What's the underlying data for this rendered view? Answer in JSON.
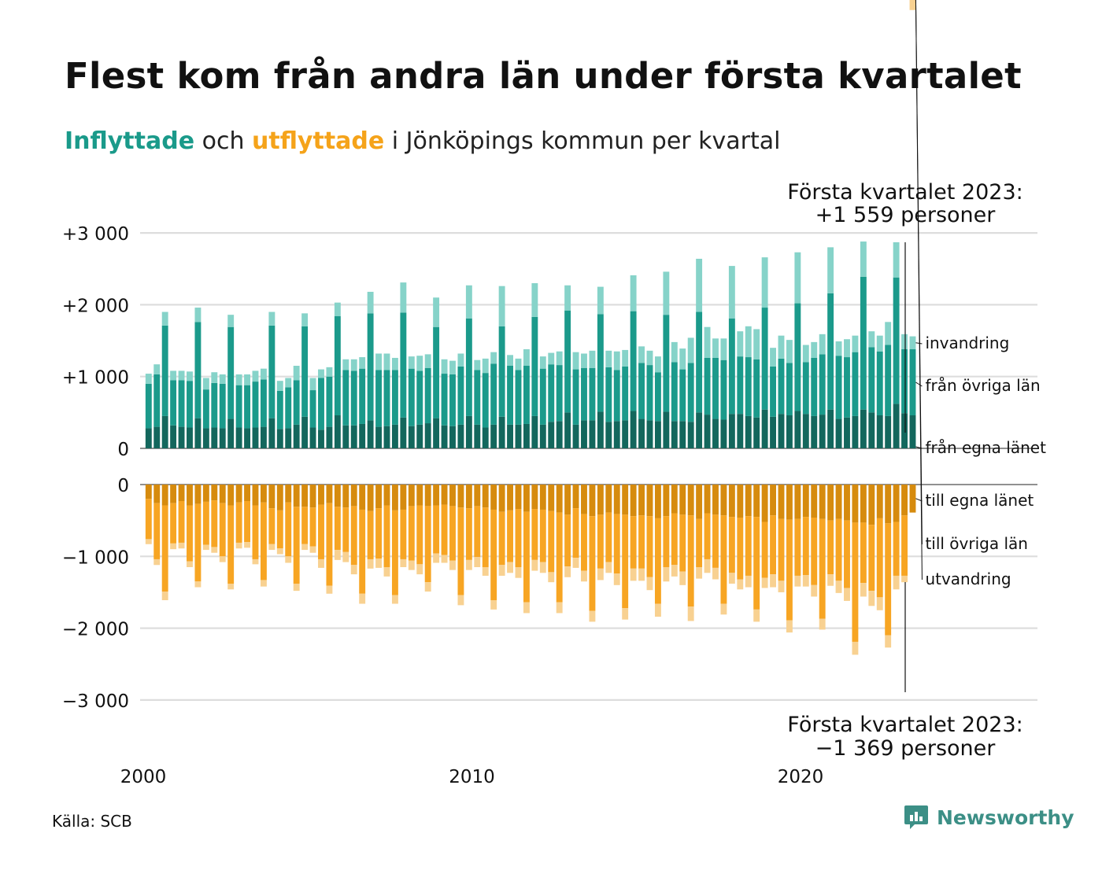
{
  "header": {
    "title": "Flest kom från andra län under första kvartalet",
    "subtitle_in": "Inflyttade",
    "subtitle_mid": " och ",
    "subtitle_out": "utflyttade",
    "subtitle_rest": " i Jönköpings kommun per kvartal"
  },
  "annotations": {
    "top_line1": "Första kvartalet 2023:",
    "top_line2": "+1 559 personer",
    "bottom_line1": "Första kvartalet 2023:",
    "bottom_line2": "−1 369 personer"
  },
  "footer": {
    "source": "Källa: SCB",
    "logo": "Newsworthy"
  },
  "colors": {
    "in_own": "#13675d",
    "in_other": "#1b9a8b",
    "in_immigration": "#86d3c9",
    "out_own": "#d68b0e",
    "out_other": "#f7a523",
    "out_emigration": "#f8d191",
    "grid": "#dddddd"
  },
  "chart_data": {
    "type": "bar",
    "stacked": true,
    "x_start": "2000 Q1",
    "frequency": "quarterly",
    "x_ticks": [
      "2000",
      "2010",
      "2020"
    ],
    "in_axis": {
      "ylim": [
        0,
        3000
      ],
      "ticks": [
        "0",
        "+1 000",
        "+2 000",
        "+3 000"
      ]
    },
    "out_axis": {
      "ylim": [
        -3000,
        0
      ],
      "ticks": [
        "0",
        "−1 000",
        "−2 000",
        "−3 000"
      ]
    },
    "grid": true,
    "inflow_series": [
      {
        "name": "från egna länet",
        "color_key": "in_own",
        "values": [
          280,
          300,
          450,
          320,
          300,
          290,
          420,
          280,
          290,
          280,
          410,
          290,
          280,
          290,
          300,
          420,
          270,
          280,
          330,
          440,
          290,
          260,
          300,
          460,
          320,
          320,
          340,
          390,
          300,
          310,
          330,
          430,
          310,
          330,
          350,
          420,
          320,
          310,
          330,
          450,
          330,
          290,
          330,
          440,
          330,
          330,
          340,
          450,
          330,
          370,
          380,
          500,
          330,
          390,
          390,
          510,
          370,
          380,
          390,
          520,
          410,
          390,
          380,
          510,
          380,
          380,
          370,
          500,
          470,
          410,
          400,
          480,
          480,
          450,
          430,
          540,
          440,
          480,
          460,
          520,
          480,
          450,
          470,
          540,
          410,
          430,
          450,
          540,
          500,
          460,
          450,
          620,
          490,
          460
        ]
      },
      {
        "name": "från övriga län",
        "color_key": "in_other",
        "values": [
          620,
          730,
          1260,
          630,
          650,
          650,
          1340,
          540,
          620,
          620,
          1280,
          590,
          600,
          640,
          660,
          1290,
          530,
          570,
          620,
          1260,
          520,
          720,
          700,
          1380,
          770,
          760,
          770,
          1490,
          790,
          780,
          760,
          1460,
          800,
          750,
          770,
          1270,
          720,
          720,
          810,
          1360,
          760,
          760,
          850,
          1260,
          820,
          760,
          810,
          1380,
          780,
          800,
          780,
          1420,
          770,
          730,
          730,
          1360,
          760,
          710,
          750,
          1390,
          780,
          770,
          680,
          1350,
          820,
          720,
          820,
          1400,
          790,
          850,
          830,
          1330,
          800,
          820,
          810,
          1420,
          700,
          770,
          730,
          1500,
          720,
          810,
          840,
          1620,
          880,
          840,
          890,
          1850,
          910,
          890,
          990,
          1760,
          890,
          920
        ]
      },
      {
        "name": "invandring",
        "color_key": "in_immigration",
        "values": [
          140,
          140,
          190,
          130,
          130,
          130,
          200,
          160,
          150,
          130,
          170,
          150,
          150,
          150,
          150,
          190,
          140,
          130,
          200,
          180,
          170,
          120,
          130,
          190,
          150,
          160,
          160,
          300,
          230,
          230,
          170,
          420,
          170,
          210,
          190,
          410,
          200,
          190,
          180,
          460,
          140,
          200,
          160,
          560,
          150,
          160,
          230,
          470,
          170,
          160,
          190,
          350,
          240,
          200,
          240,
          380,
          230,
          260,
          230,
          500,
          230,
          200,
          220,
          600,
          280,
          290,
          350,
          740,
          430,
          270,
          300,
          730,
          350,
          430,
          420,
          700,
          260,
          320,
          320,
          710,
          240,
          220,
          280,
          640,
          200,
          250,
          230,
          490,
          220,
          220,
          320,
          490,
          210,
          180
        ]
      }
    ],
    "outflow_series": [
      {
        "name": "till egna länet",
        "color_key": "out_own",
        "values": [
          -200,
          -260,
          -290,
          -260,
          -230,
          -290,
          -270,
          -240,
          -220,
          -260,
          -290,
          -250,
          -230,
          -290,
          -250,
          -330,
          -360,
          -250,
          -310,
          -310,
          -320,
          -280,
          -260,
          -310,
          -320,
          -300,
          -350,
          -370,
          -330,
          -290,
          -360,
          -350,
          -300,
          -290,
          -300,
          -290,
          -280,
          -300,
          -320,
          -330,
          -300,
          -320,
          -350,
          -380,
          -360,
          -340,
          -380,
          -340,
          -350,
          -370,
          -390,
          -420,
          -330,
          -410,
          -440,
          -420,
          -390,
          -410,
          -420,
          -440,
          -430,
          -440,
          -470,
          -440,
          -400,
          -420,
          -430,
          -480,
          -400,
          -420,
          -430,
          -450,
          -460,
          -440,
          -450,
          -520,
          -430,
          -480,
          -490,
          -480,
          -450,
          -460,
          -480,
          -500,
          -480,
          -500,
          -530,
          -530,
          -560,
          -470,
          -540,
          -520,
          -430,
          -390
        ]
      },
      {
        "name": "till övriga län",
        "color_key": "out_other",
        "values": [
          -560,
          -780,
          -1200,
          -560,
          -580,
          -780,
          -1080,
          -600,
          -650,
          -740,
          -1090,
          -560,
          -570,
          -750,
          -1080,
          -500,
          -530,
          -750,
          -1070,
          -520,
          -540,
          -760,
          -1150,
          -600,
          -620,
          -820,
          -1170,
          -670,
          -700,
          -860,
          -1180,
          -690,
          -760,
          -820,
          -1060,
          -670,
          -700,
          -760,
          -1220,
          -720,
          -710,
          -830,
          -1260,
          -740,
          -720,
          -810,
          -1260,
          -710,
          -730,
          -850,
          -1250,
          -720,
          -690,
          -790,
          -1320,
          -750,
          -690,
          -830,
          -1300,
          -730,
          -740,
          -850,
          -1190,
          -710,
          -720,
          -790,
          -1270,
          -670,
          -640,
          -740,
          -1230,
          -780,
          -860,
          -830,
          -1290,
          -780,
          -820,
          -860,
          -1400,
          -790,
          -810,
          -940,
          -1390,
          -750,
          -860,
          -940,
          -1660,
          -840,
          -920,
          -1100,
          -1560,
          -750,
          -840
        ]
      },
      {
        "name": "utvandring",
        "color_key": "out_emigration",
        "values": [
          -70,
          -80,
          -120,
          -80,
          -80,
          -80,
          -80,
          -70,
          -80,
          -80,
          -80,
          -80,
          -80,
          -70,
          -90,
          -80,
          -80,
          -90,
          -100,
          -80,
          -90,
          -120,
          -110,
          -140,
          -140,
          -130,
          -140,
          -130,
          -130,
          -130,
          -120,
          -110,
          -130,
          -140,
          -130,
          -130,
          -110,
          -130,
          -140,
          -140,
          -140,
          -120,
          -130,
          -150,
          -150,
          -150,
          -150,
          -150,
          -150,
          -140,
          -150,
          -150,
          -140,
          -150,
          -150,
          -160,
          -150,
          -160,
          -160,
          -170,
          -170,
          -180,
          -180,
          -200,
          -160,
          -190,
          -200,
          -160,
          -190,
          -160,
          -150,
          -150,
          -140,
          -160,
          -170,
          -140,
          -180,
          -160,
          -170,
          -150,
          -160,
          -160,
          -150,
          -160,
          -170,
          -180,
          -180,
          -190,
          -210,
          -180,
          -170,
          -190,
          -90,
          -140
        ]
      }
    ]
  }
}
